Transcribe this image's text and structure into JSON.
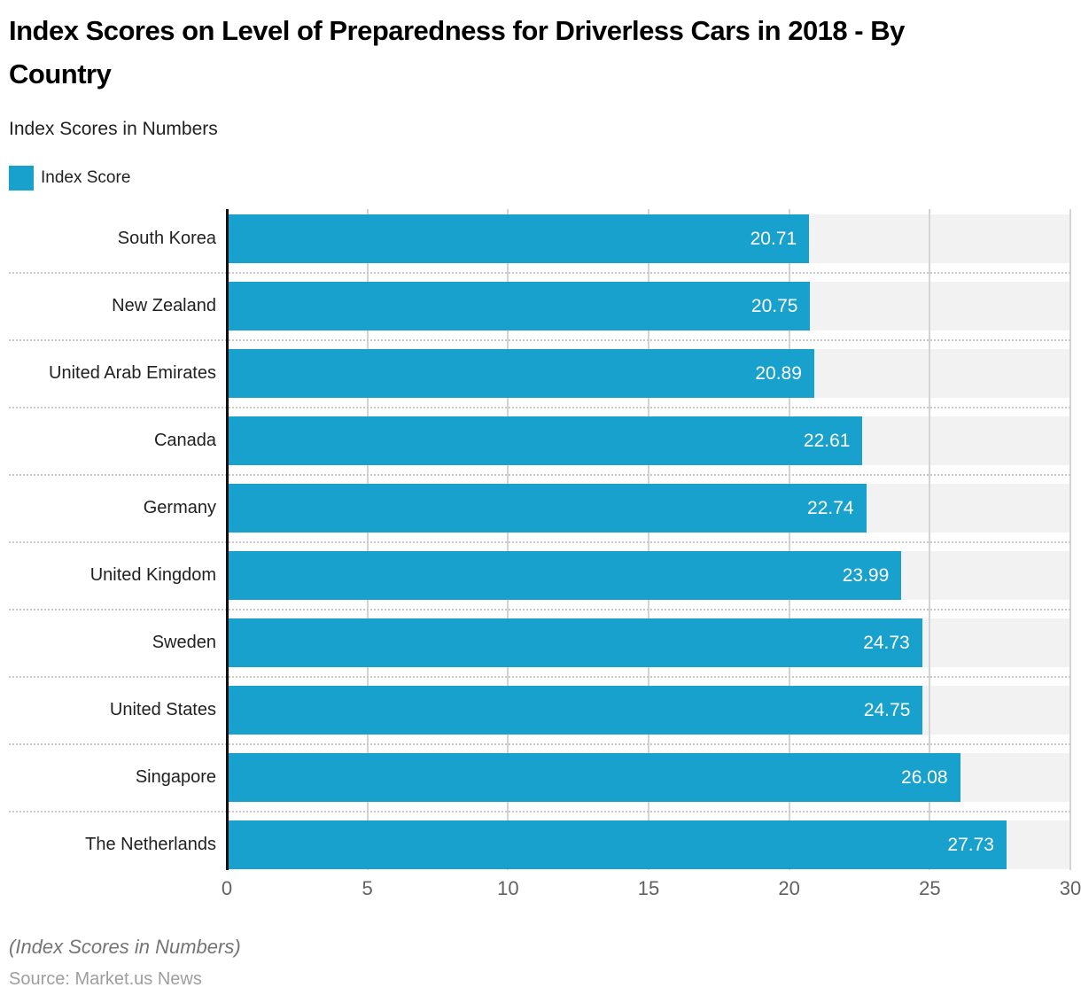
{
  "title": "Index Scores on Level of Preparedness for Driverless Cars in 2018 - By Country",
  "subtitle": "Index Scores in Numbers",
  "legend": {
    "label": "Index Score",
    "swatch_color": "#18a1cd"
  },
  "chart_data": {
    "type": "bar",
    "orientation": "horizontal",
    "title": "Index Scores on Level of Preparedness for Driverless Cars in 2018 - By Country",
    "subtitle": "Index Scores in Numbers",
    "series_name": "Index Score",
    "categories": [
      "South Korea",
      "New Zealand",
      "United Arab Emirates",
      "Canada",
      "Germany",
      "United Kingdom",
      "Sweden",
      "United States",
      "Singapore",
      "The Netherlands"
    ],
    "values": [
      20.71,
      20.75,
      20.89,
      22.61,
      22.74,
      23.99,
      24.73,
      24.75,
      26.08,
      27.73
    ],
    "value_labels": [
      "20.71",
      "20.75",
      "20.89",
      "22.61",
      "22.74",
      "23.99",
      "24.73",
      "24.75",
      "26.08",
      "27.73"
    ],
    "xlim": [
      0,
      30
    ],
    "xticks": [
      0,
      5,
      10,
      15,
      20,
      25,
      30
    ],
    "grid": "vertical-gridlines-with-dotted-row-separators",
    "legend_position": "top-left",
    "bar_color": "#18a1cd",
    "track_color": "#f2f2f2",
    "gridline_color": "#d4d4d4",
    "value_label_color": "#ffffff"
  },
  "footer": {
    "note": "(Index Scores in Numbers)",
    "source": "Source: Market.us News"
  }
}
